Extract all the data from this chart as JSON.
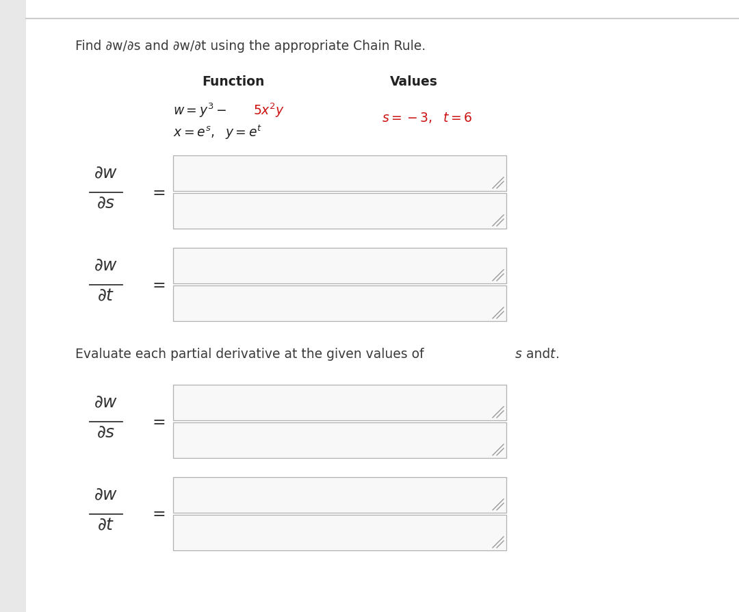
{
  "bg_color": "#ffffff",
  "left_panel_color": "#e8e8e8",
  "title_text": "Find ∂w/∂s and ∂w/∂t using the appropriate Chain Rule.",
  "title_color": "#3a3a3a",
  "title_fontsize": 13.5,
  "function_label": "Function",
  "values_label": "Values",
  "evaluate_text": "Evaluate each partial derivative at the given values of",
  "evaluate_s": "s",
  "evaluate_and": "and",
  "evaluate_t": "t",
  "box_facecolor": "#f8f8f8",
  "box_edgecolor": "#b0b0b0",
  "handle_color": "#999999",
  "text_color": "#333333",
  "red_color": "#cc1111",
  "dark_color": "#222222"
}
